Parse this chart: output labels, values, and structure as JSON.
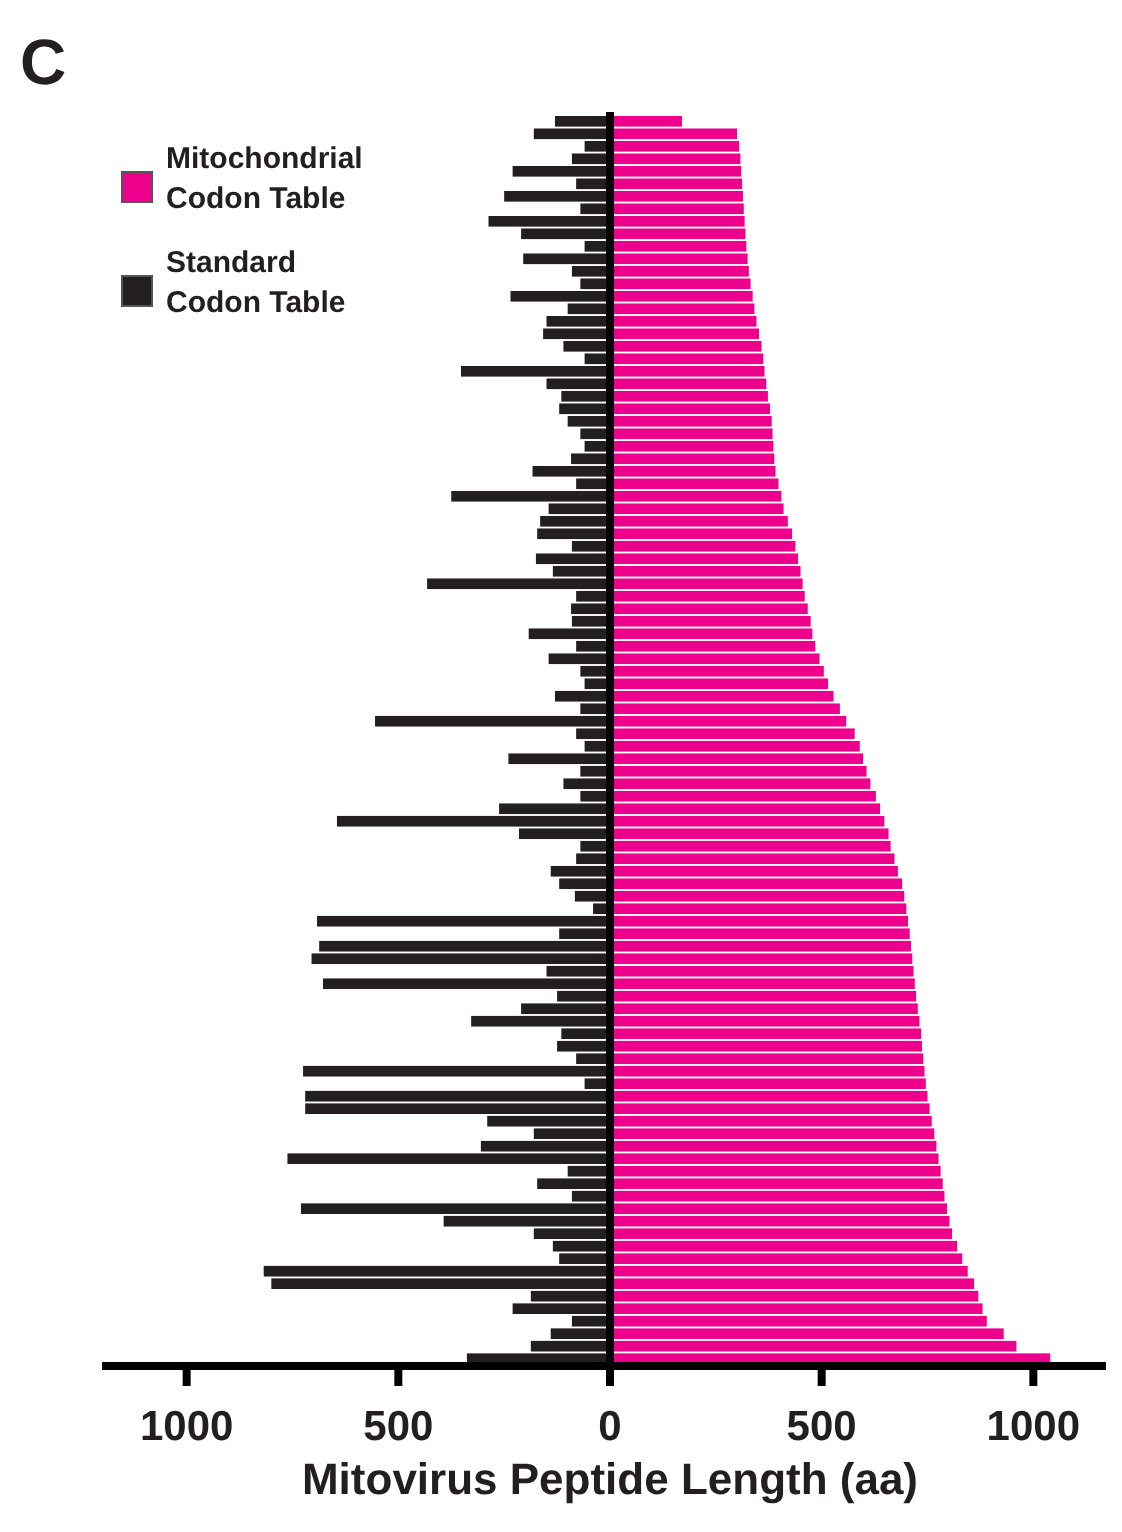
{
  "chart_data": {
    "type": "bar",
    "title": "C",
    "xlabel": "Mitovirus Peptide Length (aa)",
    "orientation": "horizontal",
    "stacked": true,
    "legend": "top left",
    "tick_labels": "x",
    "xlim": [
      -1200,
      1200
    ],
    "xticks": [
      {
        "value": -1000,
        "label": "1000"
      },
      {
        "value": -500,
        "label": "500"
      },
      0,
      500,
      1000
    ],
    "categories": [
      null,
      null,
      null,
      null,
      null,
      null,
      null,
      null,
      null,
      null,
      null,
      null,
      null,
      null,
      null,
      null,
      null,
      null,
      null,
      null,
      null,
      null,
      null,
      null,
      null,
      null,
      null,
      null,
      null,
      null,
      null,
      null,
      null,
      null,
      null,
      null,
      null,
      null,
      null,
      null,
      null,
      null,
      null,
      null,
      null,
      null,
      null,
      null,
      null,
      null,
      null,
      null,
      null,
      null,
      null,
      null,
      null,
      null,
      null,
      null,
      null,
      null,
      null,
      null,
      null,
      null,
      null,
      null,
      null,
      null,
      null,
      null,
      null,
      null,
      null,
      null,
      null,
      null,
      null,
      null,
      null,
      null,
      null,
      null,
      null,
      null,
      null,
      null,
      null,
      null,
      null,
      null,
      null,
      null,
      null,
      null,
      null,
      null,
      null,
      null
    ],
    "series": [
      {
        "name": "Mitochondrial Codon Table",
        "color": "#ec008c",
        "values": [
          170,
          300,
          305,
          308,
          310,
          312,
          314,
          316,
          318,
          320,
          322,
          325,
          328,
          332,
          337,
          341,
          346,
          352,
          358,
          362,
          365,
          369,
          373,
          378,
          382,
          384,
          386,
          388,
          391,
          398,
          405,
          410,
          420,
          430,
          438,
          444,
          450,
          455,
          460,
          467,
          474,
          478,
          485,
          495,
          505,
          515,
          528,
          543,
          558,
          578,
          590,
          598,
          606,
          615,
          628,
          638,
          648,
          658,
          663,
          672,
          680,
          690,
          695,
          700,
          704,
          708,
          711,
          714,
          717,
          720,
          723,
          727,
          731,
          735,
          737,
          740,
          743,
          746,
          750,
          755,
          760,
          766,
          771,
          776,
          781,
          786,
          790,
          796,
          802,
          808,
          820,
          832,
          845,
          860,
          870,
          880,
          890,
          930,
          960,
          1040
        ]
      },
      {
        "name": "Standard Codon Table",
        "color": "#231f20",
        "values": [
          -130,
          -180,
          -60,
          -90,
          -230,
          -80,
          -250,
          -70,
          -287,
          -210,
          -60,
          -205,
          -90,
          -70,
          -235,
          -100,
          -150,
          -158,
          -110,
          -60,
          -352,
          -150,
          -115,
          -120,
          -100,
          -70,
          -60,
          -92,
          -183,
          -80,
          -375,
          -145,
          -165,
          -172,
          -90,
          -175,
          -135,
          -432,
          -80,
          -92,
          -90,
          -192,
          -80,
          -145,
          -70,
          -60,
          -130,
          -70,
          -555,
          -80,
          -60,
          -240,
          -70,
          -110,
          -70,
          -262,
          -645,
          -215,
          -70,
          -80,
          -140,
          -120,
          -83,
          -40,
          -692,
          -120,
          -687,
          -705,
          -150,
          -678,
          -125,
          -210,
          -328,
          -115,
          -125,
          -80,
          -725,
          -60,
          -720,
          -720,
          -290,
          -180,
          -305,
          -762,
          -100,
          -172,
          -90,
          -730,
          -393,
          -180,
          -135,
          -120,
          -818,
          -800,
          -187,
          -230,
          -90,
          -140,
          -187,
          -338
        ]
      }
    ]
  }
}
